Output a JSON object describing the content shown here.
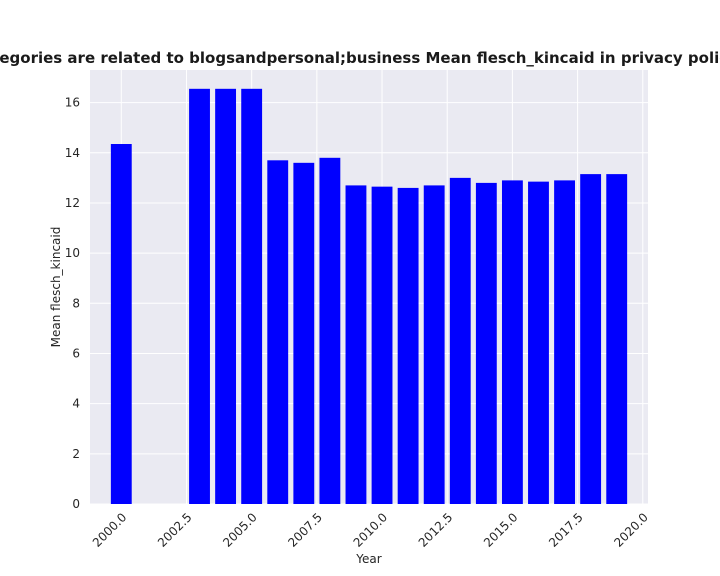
{
  "chart_data": {
    "type": "bar",
    "title": "n categories are related to blogsandpersonal;business Mean flesch_kincaid in privacy policies l",
    "xlabel": "Year",
    "ylabel": "Mean flesch_kincaid",
    "x": [
      2000,
      2003,
      2004,
      2005,
      2006,
      2007,
      2008,
      2009,
      2010,
      2011,
      2012,
      2013,
      2014,
      2015,
      2016,
      2017,
      2018,
      2019
    ],
    "values": [
      14.35,
      16.55,
      16.55,
      16.55,
      13.7,
      13.6,
      13.8,
      12.7,
      12.65,
      12.6,
      12.7,
      13.0,
      12.8,
      12.9,
      12.85,
      12.9,
      13.15,
      13.15
    ],
    "xlim": [
      1998.8,
      2020.2
    ],
    "ylim": [
      0,
      17.3
    ],
    "xticks": [
      2000,
      2002.5,
      2005,
      2007.5,
      2010,
      2012.5,
      2015,
      2017.5,
      2020
    ],
    "xtick_labels": [
      "2000.0",
      "2002.5",
      "2005.0",
      "2007.5",
      "2010.0",
      "2012.5",
      "2015.0",
      "2017.5",
      "2020.0"
    ],
    "yticks": [
      0,
      2,
      4,
      6,
      8,
      10,
      12,
      14,
      16
    ],
    "ytick_labels": [
      "0",
      "2",
      "4",
      "6",
      "8",
      "10",
      "12",
      "14",
      "16"
    ],
    "bar_width": 0.8,
    "bar_color": "#0000ff",
    "grid": true,
    "style": {
      "plot_background": "#eaeaf2",
      "grid_color": "#ffffff",
      "text_color": "#262626"
    }
  }
}
